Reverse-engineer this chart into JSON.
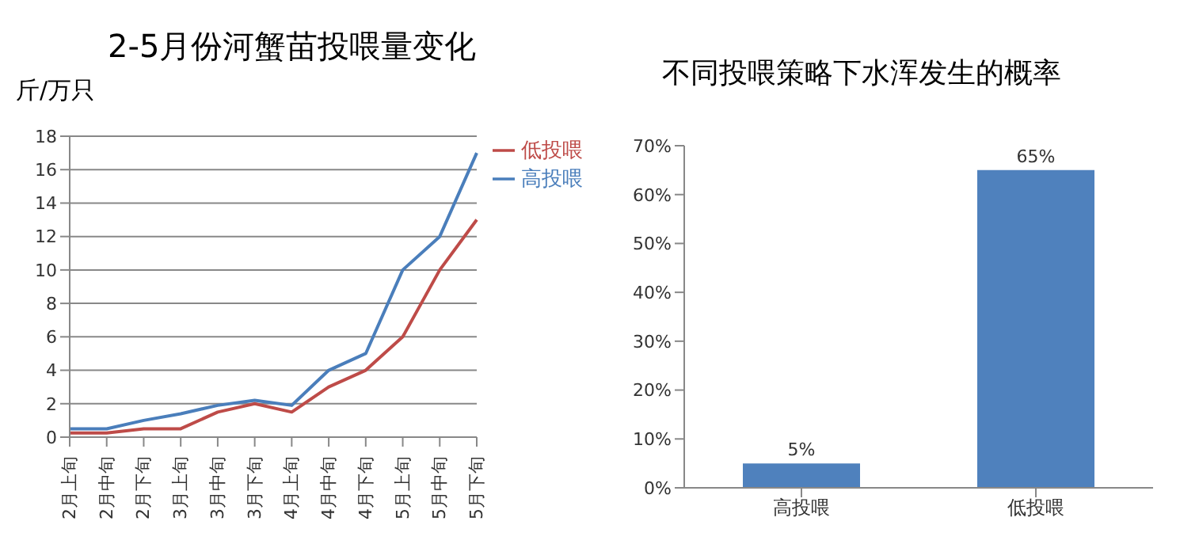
{
  "chart_data": [
    {
      "type": "line",
      "title": "2-5月份河蟹苗投喂量变化",
      "ylabel": "斤/万只",
      "categories": [
        "2月上旬",
        "2月中旬",
        "2月下旬",
        "3月上旬",
        "3月中旬",
        "3月下旬",
        "4月上旬",
        "4月中旬",
        "4月下旬",
        "5月上旬",
        "5月中旬",
        "5月下旬"
      ],
      "series": [
        {
          "name": "高投喂",
          "color": "#4a7ebb",
          "values": [
            0.5,
            0.5,
            1,
            1.4,
            1.9,
            2.2,
            1.9,
            4,
            5,
            10,
            12,
            17
          ]
        },
        {
          "name": "低投喂",
          "color": "#be4b48",
          "values": [
            0.25,
            0.25,
            0.5,
            0.5,
            1.5,
            2,
            1.5,
            3,
            4,
            6,
            10,
            13
          ]
        }
      ],
      "ylim": [
        0,
        18
      ],
      "yticks": [
        0,
        2,
        4,
        6,
        8,
        10,
        12,
        14,
        16,
        18
      ],
      "grid": "y",
      "legend": "top right",
      "marker": "none",
      "line_style": "solid"
    },
    {
      "type": "bar",
      "title": "不同投喂策略下水浑发生的概率",
      "categories": [
        "高投喂",
        "低投喂"
      ],
      "values": [
        5,
        65
      ],
      "color": "#4f81bd",
      "ylim": [
        0,
        70
      ],
      "yticks": [
        {
          "value": 0,
          "label": "0%"
        },
        {
          "value": 10,
          "label": "10%"
        },
        {
          "value": 20,
          "label": "20%"
        },
        {
          "value": 30,
          "label": "30%"
        },
        {
          "value": 40,
          "label": "40%"
        },
        {
          "value": 50,
          "label": "50%"
        },
        {
          "value": 60,
          "label": "60%"
        },
        {
          "value": 70,
          "label": "70%"
        }
      ],
      "value_labels": [
        "5%",
        "65%"
      ],
      "grid": false
    }
  ]
}
